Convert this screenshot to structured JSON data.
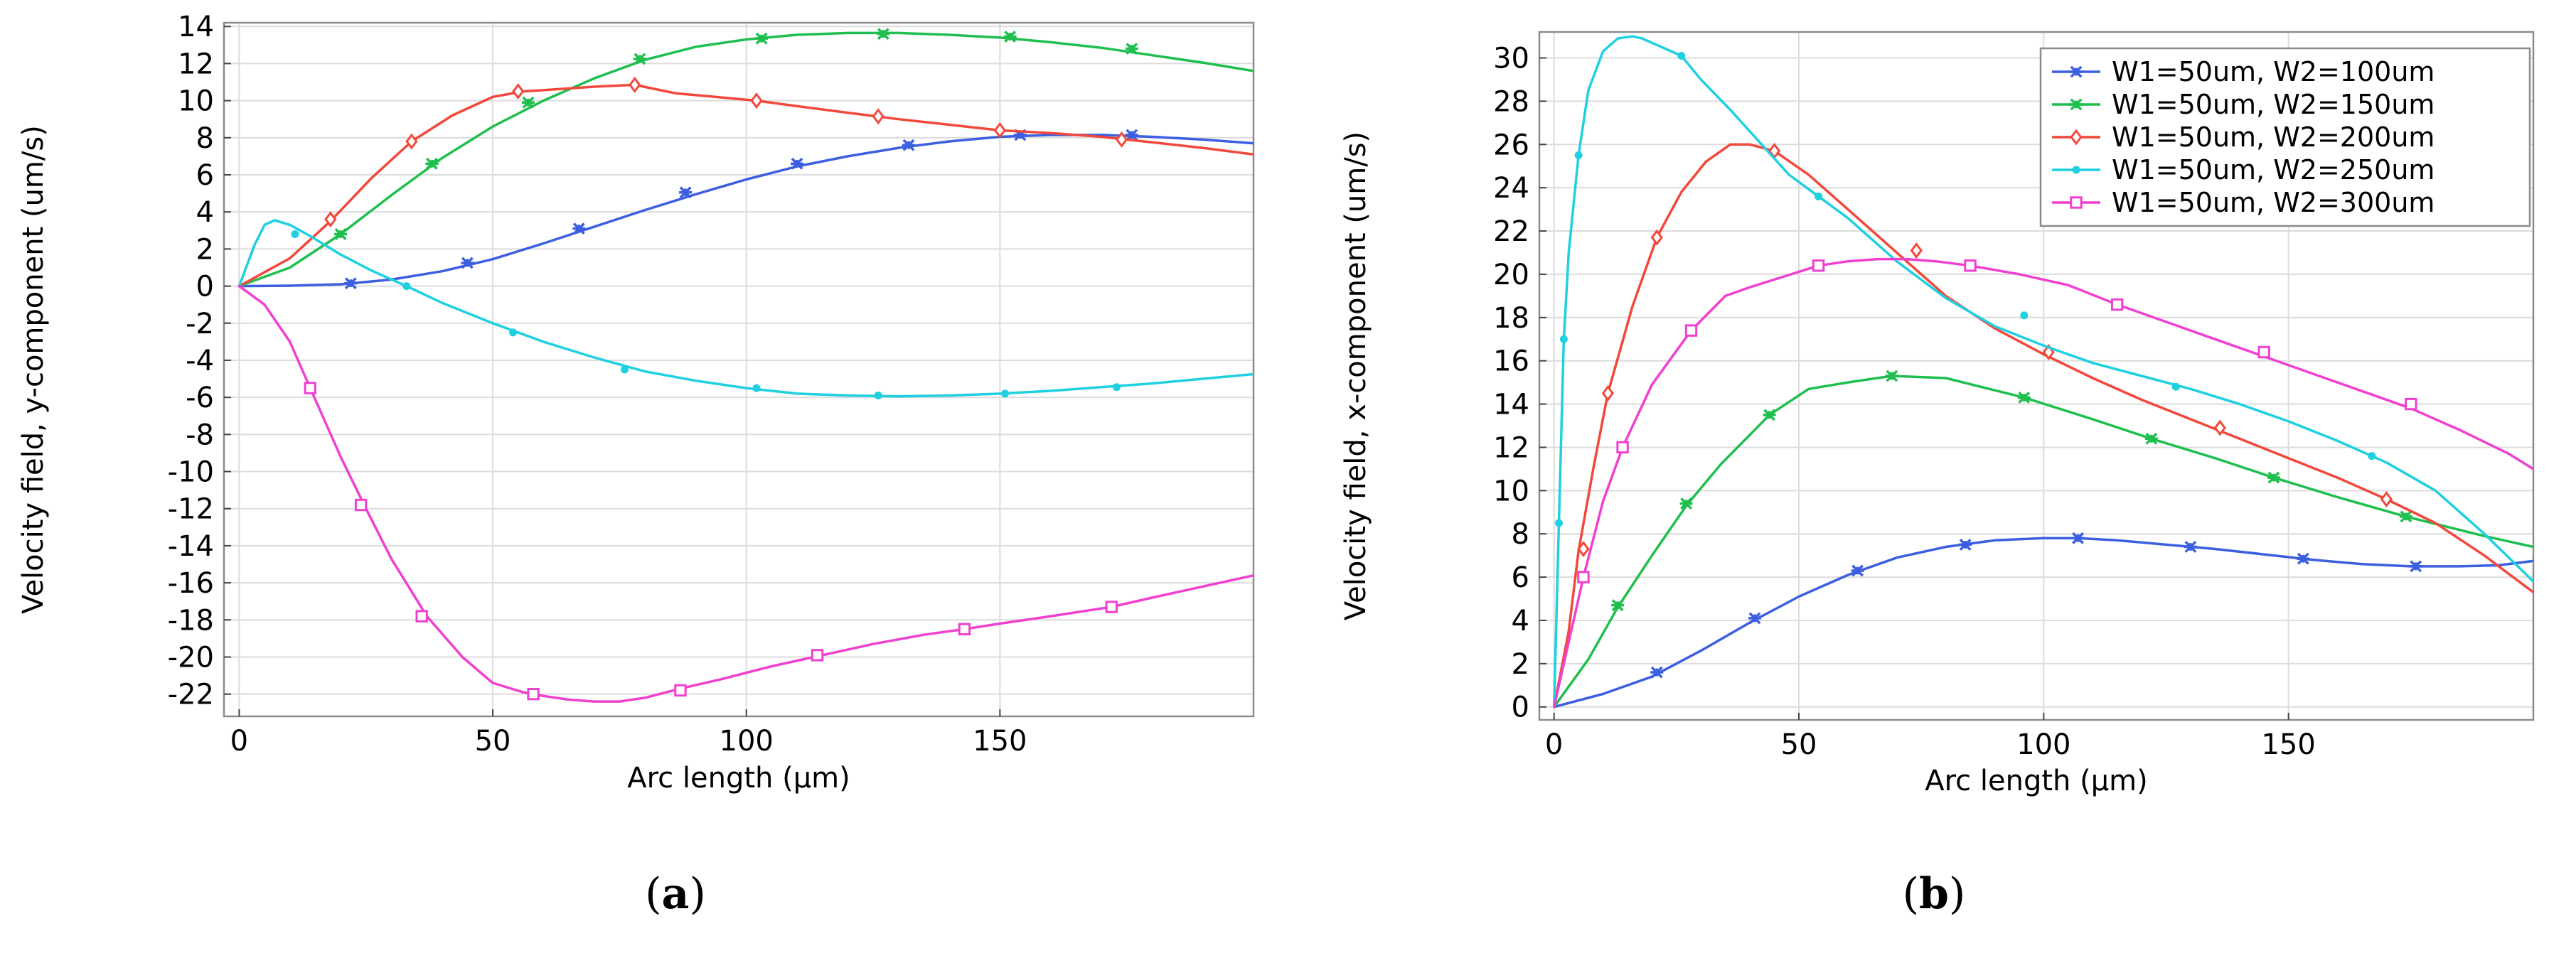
{
  "chart_data": [
    {
      "panel": "a",
      "caption": {
        "open": "(",
        "letter": "a",
        "close": ")"
      },
      "type": "line",
      "title": "",
      "xlabel": "Arc length (µm)",
      "ylabel": "Velocity field, y-component (um/s)",
      "xlim": [
        -3,
        200
      ],
      "ylim": [
        -23.2,
        14.2
      ],
      "xticks": [
        0,
        50,
        100,
        150
      ],
      "yticks": [
        14,
        12,
        10,
        8,
        6,
        4,
        2,
        0,
        -2,
        -4,
        -6,
        -8,
        -10,
        -12,
        -14,
        -16,
        -18,
        -20,
        -22
      ],
      "grid": true,
      "legend": false,
      "series": [
        {
          "name": "W1=50um, W2=100um",
          "color": "#3b5fe0",
          "marker": "asterisk",
          "x": [
            0,
            10,
            20,
            30,
            40,
            50,
            60,
            70,
            80,
            90,
            100,
            110,
            120,
            130,
            140,
            150,
            160,
            170,
            180,
            190,
            200
          ],
          "y": [
            0,
            0.02,
            0.1,
            0.35,
            0.8,
            1.45,
            2.3,
            3.2,
            4.1,
            4.95,
            5.75,
            6.45,
            7.0,
            7.45,
            7.8,
            8.05,
            8.15,
            8.15,
            8.05,
            7.9,
            7.7
          ],
          "markers_x": [
            22,
            45,
            67,
            88,
            110,
            132,
            154,
            176
          ],
          "markers_y": [
            0.15,
            1.25,
            3.1,
            5.05,
            6.6,
            7.6,
            8.15,
            8.15
          ]
        },
        {
          "name": "W1=50um, W2=150um",
          "color": "#1fbf4f",
          "marker": "asterisk",
          "x": [
            0,
            10,
            20,
            30,
            40,
            50,
            60,
            70,
            80,
            90,
            100,
            110,
            120,
            130,
            140,
            150,
            160,
            170,
            180,
            190,
            200
          ],
          "y": [
            0,
            1.0,
            2.8,
            4.9,
            6.9,
            8.6,
            10.0,
            11.2,
            12.2,
            12.9,
            13.3,
            13.55,
            13.65,
            13.65,
            13.55,
            13.4,
            13.15,
            12.85,
            12.45,
            12.05,
            11.6
          ],
          "markers_x": [
            20,
            38,
            57,
            79,
            103,
            127,
            152,
            176
          ],
          "markers_y": [
            2.8,
            6.6,
            9.9,
            12.25,
            13.35,
            13.6,
            13.45,
            12.8
          ]
        },
        {
          "name": "W1=50um, W2=200um",
          "color": "#f2483c",
          "marker": "diamond",
          "x": [
            0,
            10,
            18,
            26,
            34,
            42,
            50,
            56,
            62,
            70,
            78,
            86,
            94,
            102,
            110,
            120,
            130,
            140,
            150,
            160,
            170,
            180,
            190,
            200
          ],
          "y": [
            0,
            1.5,
            3.5,
            5.8,
            7.8,
            9.2,
            10.2,
            10.5,
            10.6,
            10.75,
            10.85,
            10.4,
            10.2,
            10.0,
            9.7,
            9.35,
            9.0,
            8.7,
            8.4,
            8.25,
            8.05,
            7.75,
            7.45,
            7.1
          ],
          "markers_x": [
            18,
            34,
            55,
            78,
            102,
            126,
            150,
            174
          ],
          "markers_y": [
            3.6,
            7.8,
            10.5,
            10.85,
            10.0,
            9.15,
            8.4,
            7.9
          ]
        },
        {
          "name": "W1=50um, W2=250um",
          "color": "#1fd0e0",
          "marker": "dot",
          "x": [
            0,
            3,
            5,
            7,
            10,
            14,
            20,
            26,
            33,
            40,
            50,
            60,
            70,
            80,
            90,
            100,
            110,
            120,
            130,
            140,
            150,
            160,
            170,
            180,
            190,
            200
          ],
          "y": [
            0,
            2.2,
            3.3,
            3.55,
            3.3,
            2.7,
            1.7,
            0.85,
            0,
            -0.9,
            -2.0,
            -3.0,
            -3.85,
            -4.6,
            -5.1,
            -5.5,
            -5.8,
            -5.9,
            -5.95,
            -5.9,
            -5.8,
            -5.65,
            -5.45,
            -5.25,
            -5.0,
            -4.75
          ],
          "markers_x": [
            11,
            33,
            54,
            76,
            102,
            126,
            151,
            173
          ],
          "markers_y": [
            2.8,
            0,
            -2.5,
            -4.5,
            -5.5,
            -5.9,
            -5.8,
            -5.45
          ]
        },
        {
          "name": "W1=50um, W2=300um",
          "color": "#f040d0",
          "marker": "square",
          "x": [
            0,
            5,
            10,
            14,
            20,
            25,
            30,
            37,
            44,
            50,
            56,
            60,
            65,
            70,
            75,
            80,
            87,
            95,
            105,
            115,
            125,
            135,
            143,
            150,
            160,
            172,
            180,
            190,
            200
          ],
          "y": [
            0,
            -1.0,
            -3.0,
            -5.5,
            -9.2,
            -12.0,
            -14.7,
            -17.8,
            -20.0,
            -21.4,
            -21.9,
            -22.1,
            -22.3,
            -22.4,
            -22.4,
            -22.2,
            -21.7,
            -21.2,
            -20.5,
            -19.9,
            -19.3,
            -18.8,
            -18.5,
            -18.2,
            -17.8,
            -17.3,
            -16.8,
            -16.2,
            -15.6
          ],
          "markers_x": [
            14,
            24,
            36,
            58,
            87,
            114,
            143,
            172
          ],
          "markers_y": [
            -5.5,
            -11.8,
            -17.8,
            -22.0,
            -21.8,
            -19.9,
            -18.5,
            -17.3
          ]
        }
      ]
    },
    {
      "panel": "b",
      "caption": {
        "open": "(",
        "letter": "b",
        "close": ")"
      },
      "type": "line",
      "title": "",
      "xlabel": "Arc length (µm)",
      "ylabel": "Velocity field, x-component (um/s)",
      "xlim": [
        -3,
        200
      ],
      "ylim": [
        -0.6,
        31.2
      ],
      "xticks": [
        0,
        50,
        100,
        150
      ],
      "yticks": [
        30,
        28,
        26,
        24,
        22,
        20,
        18,
        16,
        14,
        12,
        10,
        8,
        6,
        4,
        2,
        0
      ],
      "grid": true,
      "legend": true,
      "legend_position": "top-right",
      "series": [
        {
          "name": "W1=50um, W2=100um",
          "color": "#3b5fe0",
          "marker": "asterisk",
          "x": [
            0,
            10,
            20,
            30,
            40,
            50,
            60,
            70,
            80,
            90,
            100,
            107,
            115,
            125,
            135,
            145,
            155,
            165,
            175,
            185,
            193,
            200
          ],
          "y": [
            0,
            0.6,
            1.4,
            2.6,
            3.9,
            5.1,
            6.1,
            6.9,
            7.4,
            7.7,
            7.8,
            7.8,
            7.7,
            7.5,
            7.3,
            7.05,
            6.8,
            6.6,
            6.5,
            6.5,
            6.55,
            6.75
          ],
          "markers_x": [
            21,
            41,
            62,
            84,
            107,
            130,
            153,
            176
          ],
          "markers_y": [
            1.6,
            4.1,
            6.3,
            7.5,
            7.8,
            7.4,
            6.85,
            6.5
          ]
        },
        {
          "name": "W1=50um, W2=150um",
          "color": "#1fbf4f",
          "marker": "asterisk",
          "x": [
            0,
            7,
            13,
            20,
            27,
            34,
            44,
            52,
            60,
            69,
            80,
            96,
            110,
            122,
            135,
            147,
            160,
            174,
            190,
            200
          ],
          "y": [
            0,
            2.2,
            4.6,
            7.0,
            9.3,
            11.2,
            13.5,
            14.7,
            15.0,
            15.3,
            15.2,
            14.3,
            13.3,
            12.4,
            11.5,
            10.6,
            9.7,
            8.8,
            7.9,
            7.4
          ],
          "markers_x": [
            13,
            27,
            44,
            69,
            96,
            122,
            147,
            174
          ],
          "markers_y": [
            4.7,
            9.4,
            13.5,
            15.3,
            14.3,
            12.4,
            10.6,
            8.8
          ]
        },
        {
          "name": "W1=50um, W2=200um",
          "color": "#f2483c",
          "marker": "diamond",
          "x": [
            0,
            3,
            5,
            8,
            11,
            16,
            21,
            26,
            31,
            36,
            40,
            45,
            52,
            60,
            70,
            80,
            90,
            100,
            110,
            120,
            130,
            140,
            150,
            160,
            170,
            180,
            190,
            200
          ],
          "y": [
            0,
            3.5,
            7.2,
            11.0,
            14.5,
            18.5,
            21.7,
            23.8,
            25.2,
            26.0,
            26.0,
            25.7,
            24.6,
            23.0,
            21.0,
            19.0,
            17.5,
            16.3,
            15.2,
            14.2,
            13.3,
            12.4,
            11.5,
            10.6,
            9.6,
            8.5,
            7.0,
            5.3
          ],
          "markers_x": [
            6,
            11,
            21,
            45,
            74,
            101,
            136,
            170
          ],
          "markers_y": [
            7.3,
            14.5,
            21.7,
            25.7,
            21.1,
            16.4,
            12.9,
            9.6
          ]
        },
        {
          "name": "W1=50um, W2=250um",
          "color": "#1fd0e0",
          "marker": "dot",
          "x": [
            0,
            1,
            2,
            3,
            5,
            7,
            10,
            13,
            16,
            18,
            21,
            24,
            26,
            30,
            36,
            42,
            48,
            54,
            60,
            70,
            80,
            90,
            100,
            110,
            120,
            130,
            140,
            150,
            160,
            170,
            180,
            190,
            200
          ],
          "y": [
            0,
            8.5,
            17.0,
            21.0,
            25.5,
            28.5,
            30.3,
            30.9,
            31.0,
            30.9,
            30.6,
            30.3,
            30.1,
            29.0,
            27.6,
            26.1,
            24.6,
            23.6,
            22.6,
            20.6,
            18.9,
            17.6,
            16.7,
            15.9,
            15.3,
            14.7,
            14.0,
            13.2,
            12.3,
            11.3,
            10.0,
            8.0,
            5.8
          ],
          "markers_x": [
            1,
            2,
            5,
            26,
            54,
            96,
            127,
            167
          ],
          "markers_y": [
            8.5,
            17.0,
            25.5,
            30.1,
            23.6,
            18.1,
            14.8,
            11.6
          ]
        },
        {
          "name": "W1=50um, W2=300um",
          "color": "#f040d0",
          "marker": "square",
          "x": [
            0,
            3,
            6,
            10,
            14,
            20,
            28,
            35,
            40,
            47,
            54,
            60,
            66,
            72,
            78,
            85,
            95,
            105,
            115,
            125,
            135,
            145,
            155,
            165,
            175,
            185,
            195,
            200
          ],
          "y": [
            0,
            3.0,
            6.0,
            9.5,
            12.0,
            14.9,
            17.4,
            19.0,
            19.4,
            19.9,
            20.4,
            20.6,
            20.7,
            20.7,
            20.6,
            20.4,
            20.0,
            19.5,
            18.6,
            17.8,
            17.0,
            16.2,
            15.4,
            14.6,
            13.8,
            12.8,
            11.7,
            11.0
          ],
          "markers_x": [
            6,
            14,
            28,
            54,
            85,
            115,
            145,
            175
          ],
          "markers_y": [
            6.0,
            12.0,
            17.4,
            20.4,
            20.4,
            18.6,
            16.4,
            14.0
          ]
        }
      ]
    }
  ]
}
